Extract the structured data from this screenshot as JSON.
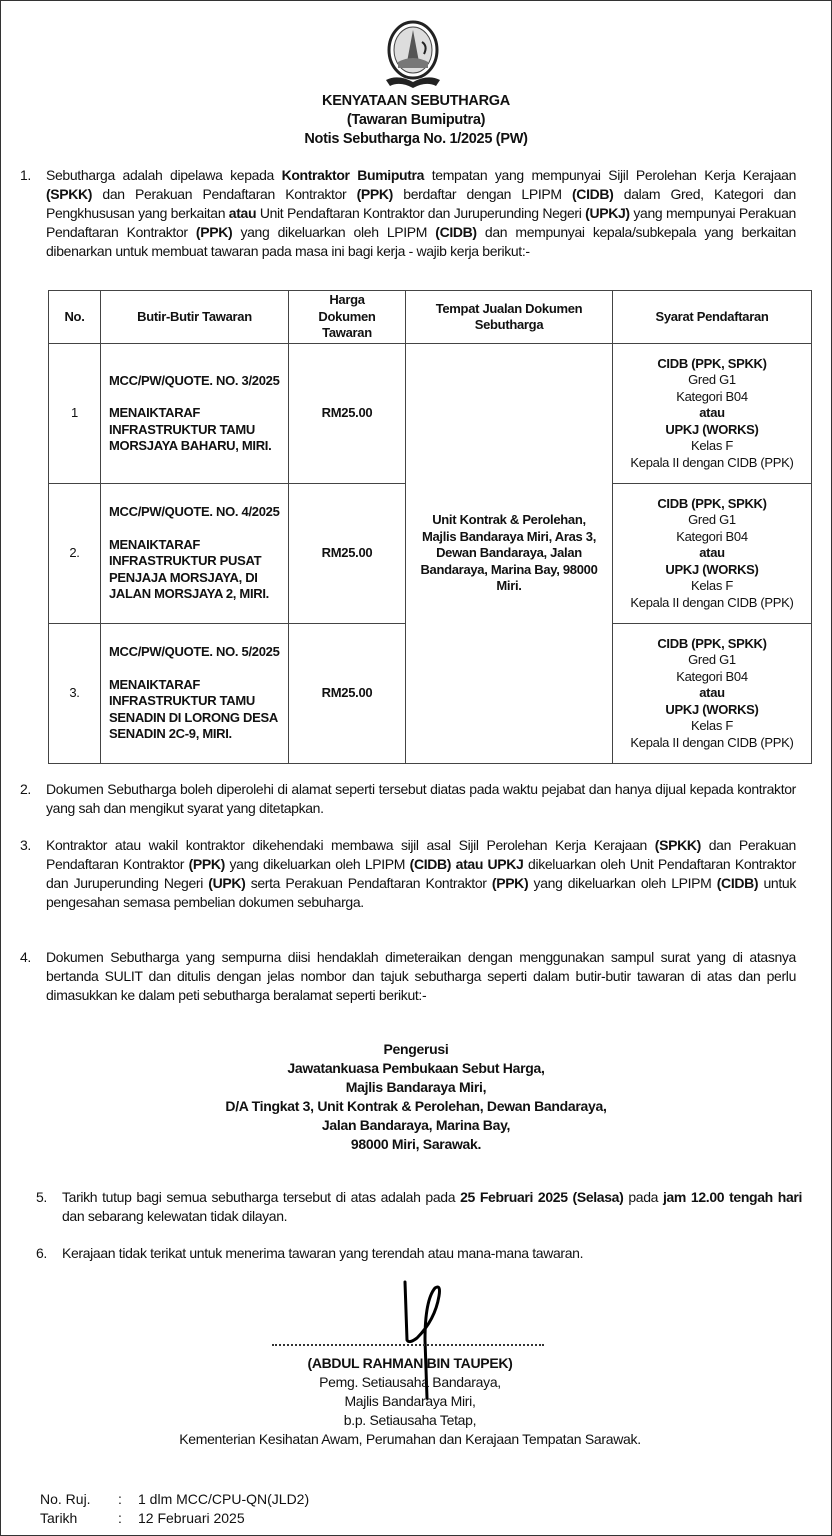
{
  "header": {
    "title": "KENYATAAN SEBUTHARGA",
    "subtitle": "(Tawaran Bumiputra)",
    "notice_no": "Notis Sebutharga No. 1/2025 (PW)"
  },
  "paragraphs": [
    {
      "num": "1.",
      "segments": [
        {
          "t": "Sebutharga adalah dipelawa kepada "
        },
        {
          "t": "Kontraktor Bumiputra",
          "b": true
        },
        {
          "t": " tempatan yang mempunyai Sijil Perolehan Kerja Kerajaan "
        },
        {
          "t": "(SPKK)",
          "b": true
        },
        {
          "t": " dan Perakuan Pendaftaran Kontraktor "
        },
        {
          "t": "(PPK)",
          "b": true
        },
        {
          "t": " berdaftar dengan LPIPM "
        },
        {
          "t": "(CIDB)",
          "b": true
        },
        {
          "t": " dalam Gred, Kategori dan Pengkhususan yang berkaitan "
        },
        {
          "t": "atau",
          "b": true
        },
        {
          "t": " Unit Pendaftaran Kontraktor dan Juruperunding Negeri "
        },
        {
          "t": "(UPKJ)",
          "b": true
        },
        {
          "t": " yang mempunyai Perakuan Pendaftaran Kontraktor "
        },
        {
          "t": "(PPK)",
          "b": true
        },
        {
          "t": " yang dikeluarkan oleh LPIPM "
        },
        {
          "t": "(CIDB)",
          "b": true
        },
        {
          "t": " dan mempunyai kepala/subkepala yang berkaitan dibenarkan untuk membuat tawaran pada masa ini bagi kerja - wajib kerja berikut:-"
        }
      ]
    },
    {
      "num": "2.",
      "segments": [
        {
          "t": "Dokumen Sebutharga boleh diperolehi di alamat seperti tersebut diatas pada waktu pejabat dan hanya dijual kepada kontraktor yang sah dan mengikut syarat yang ditetapkan."
        }
      ]
    },
    {
      "num": "3.",
      "segments": [
        {
          "t": "Kontraktor atau wakil kontraktor dikehendaki membawa sijil asal Sijil Perolehan Kerja Kerajaan "
        },
        {
          "t": "(SPKK)",
          "b": true
        },
        {
          "t": " dan Perakuan Pendaftaran Kontraktor "
        },
        {
          "t": "(PPK)",
          "b": true
        },
        {
          "t": " yang dikeluarkan oleh LPIPM "
        },
        {
          "t": "(CIDB) atau UPKJ",
          "b": true
        },
        {
          "t": " dikeluarkan oleh Unit Pendaftaran Kontraktor dan Juruperunding Negeri "
        },
        {
          "t": "(UPK)",
          "b": true
        },
        {
          "t": " serta Perakuan Pendaftaran Kontraktor "
        },
        {
          "t": "(PPK)",
          "b": true
        },
        {
          "t": " yang dikeluarkan oleh LPIPM "
        },
        {
          "t": "(CIDB)",
          "b": true
        },
        {
          "t": " untuk pengesahan semasa pembelian dokumen sebuharga."
        }
      ]
    },
    {
      "num": "4.",
      "segments": [
        {
          "t": "Dokumen Sebutharga yang sempurna diisi hendaklah dimeteraikan dengan menggunakan sampul surat yang di atasnya bertanda SULIT dan ditulis dengan jelas nombor dan tajuk sebutharga seperti dalam butir-butir tawaran di atas dan perlu dimasukkan ke dalam peti sebutharga beralamat seperti berikut:-"
        }
      ]
    },
    {
      "num": "5.",
      "segments": [
        {
          "t": "Tarikh tutup bagi semua sebutharga tersebut di atas adalah pada "
        },
        {
          "t": "25 Februari 2025 (Selasa)",
          "b": true
        },
        {
          "t": " pada "
        },
        {
          "t": "jam 12.00 tengah hari",
          "b": true
        },
        {
          "t": " dan sebarang kelewatan tidak dilayan."
        }
      ]
    },
    {
      "num": "6.",
      "segments": [
        {
          "t": "Kerajaan tidak terikat untuk menerima tawaran yang terendah atau mana-mana tawaran."
        }
      ]
    }
  ],
  "table": {
    "headers": [
      "No.",
      "Butir-Butir Tawaran",
      "Harga Dokumen Tawaran",
      "Tempat Jualan Dokumen Sebutharga",
      "Syarat Pendaftaran"
    ],
    "place": "Unit Kontrak & Perolehan, Majlis Bandaraya Miri, Aras 3, Dewan Bandaraya, Jalan Bandaraya, Marina Bay, 98000 Miri.",
    "rows": [
      {
        "no": "1",
        "ref": "MCC/PW/QUOTE. NO. 3/2025",
        "title": "MENAIKTARAF INFRASTRUKTUR TAMU MORSJAYA BAHARU, MIRI.",
        "price": "RM25.00",
        "req": {
          "cidb": "CIDB (PPK, SPKK)",
          "gred": "Gred G1",
          "kategori": "Kategori B04",
          "atau": "atau",
          "upkj": "UPKJ (WORKS)",
          "kelas": "Kelas F",
          "kepala": "Kepala II dengan CIDB (PPK)"
        }
      },
      {
        "no": "2.",
        "ref": "MCC/PW/QUOTE. NO. 4/2025",
        "title": "MENAIKTARAF INFRASTRUKTUR PUSAT PENJAJA MORSJAYA, DI JALAN MORSJAYA 2, MIRI.",
        "price": "RM25.00",
        "req": {
          "cidb": "CIDB (PPK, SPKK)",
          "gred": "Gred G1",
          "kategori": "Kategori B04",
          "atau": "atau",
          "upkj": "UPKJ (WORKS)",
          "kelas": "Kelas F",
          "kepala": "Kepala II dengan CIDB (PPK)"
        }
      },
      {
        "no": "3.",
        "ref": "MCC/PW/QUOTE. NO. 5/2025",
        "title": "MENAIKTARAF INFRASTRUKTUR TAMU SENADIN DI LORONG DESA SENADIN 2C-9, MIRI.",
        "price": "RM25.00",
        "req": {
          "cidb": "CIDB (PPK, SPKK)",
          "gred": "Gred G1",
          "kategori": "Kategori B04",
          "atau": "atau",
          "upkj": "UPKJ (WORKS)",
          "kelas": "Kelas F",
          "kepala": "Kepala II dengan CIDB (PPK)"
        }
      }
    ]
  },
  "address": [
    "Pengerusi",
    "Jawatankuasa Pembukaan Sebut Harga,",
    "Majlis Bandaraya Miri,",
    "D/A Tingkat 3, Unit Kontrak & Perolehan, Dewan Bandaraya,",
    "Jalan Bandaraya, Marina Bay,",
    "98000 Miri, Sarawak."
  ],
  "signer": {
    "name": "(ABDUL RAHMAN BIN TAUPEK)",
    "lines": [
      "Pemg. Setiausaha Bandaraya,",
      "Majlis Bandaraya Miri,",
      "b.p. Setiausaha Tetap,",
      "Kementerian Kesihatan Awam, Perumahan dan Kerajaan Tempatan Sarawak."
    ]
  },
  "reference": {
    "ref_label": "No. Ruj.",
    "ref_value": "1 dlm MCC/CPU-QN(JLD2)",
    "date_label": "Tarikh",
    "date_value": "12 Februari 2025",
    "separator": ":"
  }
}
